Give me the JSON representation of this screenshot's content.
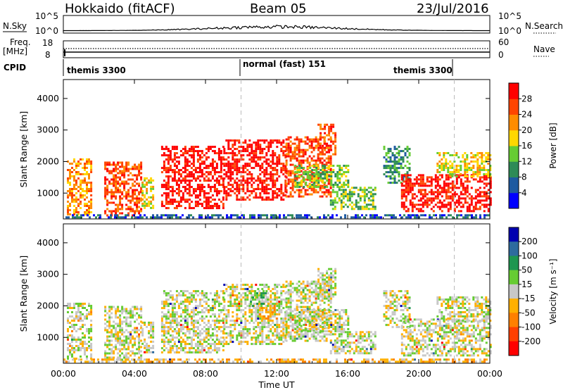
{
  "header": {
    "radar_title": "Hokkaido (fitACF)",
    "beam": "Beam 05",
    "date": "23/Jul/2016"
  },
  "labels": {
    "nsky": "N.Sky",
    "nsearch": "N.Search",
    "freq": "Freq.",
    "mhz": "[MHz]",
    "nave": "Nave",
    "cpid": "CPID",
    "noise_ticks_left": [
      "10^5",
      "10^0"
    ],
    "noise_ticks_right": [
      "10^5",
      "10^0"
    ],
    "freq_ticks": [
      "18",
      "8"
    ],
    "nave_ticks": [
      "60",
      "0"
    ]
  },
  "cpid_segments": [
    {
      "start": "00:00",
      "end": "10:00",
      "label": "themis 3300"
    },
    {
      "start": "10:00",
      "end": "22:00",
      "label": "normal (fast) 151"
    },
    {
      "start": "20:00",
      "end": "22:00",
      "label": "themis 3300"
    }
  ],
  "chart_data": [
    {
      "type": "heatmap",
      "panel": "power",
      "ylabel": "Slant Range [km]",
      "xlabel": "",
      "y_ticks": [
        "1000",
        "2000",
        "3000",
        "4000"
      ],
      "x_ticks": [
        "00:00",
        "04:00",
        "08:00",
        "12:00",
        "16:00",
        "20:00",
        "00:00"
      ],
      "ylim": [
        180,
        4600
      ],
      "colorbar": {
        "label": "Power [dB]",
        "ticks": [
          "4",
          "8",
          "12",
          "16",
          "20",
          "24",
          "28"
        ],
        "colors": [
          "#0000ff",
          "#1e5aa0",
          "#2e8b57",
          "#66cc33",
          "#ffd700",
          "#ff8c00",
          "#ff4500",
          "#ff0000"
        ]
      },
      "regions": [
        {
          "x0": 0.2,
          "x1": 1.6,
          "y0": 300,
          "y1": 2100,
          "level": 5
        },
        {
          "x0": 2.3,
          "x1": 4.4,
          "y0": 300,
          "y1": 2000,
          "level": 6
        },
        {
          "x0": 4.4,
          "x1": 5.0,
          "y0": 500,
          "y1": 1500,
          "level": 4
        },
        {
          "x0": 5.5,
          "x1": 9.0,
          "y0": 500,
          "y1": 2500,
          "level": 7
        },
        {
          "x0": 9.0,
          "x1": 12.5,
          "y0": 800,
          "y1": 2700,
          "level": 7
        },
        {
          "x0": 12.5,
          "x1": 15.0,
          "y0": 900,
          "y1": 2800,
          "level": 6
        },
        {
          "x0": 14.3,
          "x1": 15.3,
          "y0": 2200,
          "y1": 3200,
          "level": 6
        },
        {
          "x0": 13.0,
          "x1": 16.0,
          "y0": 1200,
          "y1": 1900,
          "level": 3
        },
        {
          "x0": 15.0,
          "x1": 17.5,
          "y0": 500,
          "y1": 1200,
          "level": 3
        },
        {
          "x0": 18.0,
          "x1": 19.5,
          "y0": 1300,
          "y1": 2500,
          "level": 2
        },
        {
          "x0": 19.0,
          "x1": 24.0,
          "y0": 400,
          "y1": 1600,
          "level": 7
        },
        {
          "x0": 21.0,
          "x1": 24.0,
          "y0": 1500,
          "y1": 2300,
          "level": 4
        },
        {
          "x0": 0.0,
          "x1": 24.0,
          "y0": 200,
          "y1": 330,
          "level": 1
        }
      ]
    },
    {
      "type": "heatmap",
      "panel": "velocity",
      "ylabel": "Slant Range [km]",
      "xlabel": "Time UT",
      "y_ticks": [
        "1000",
        "2000",
        "3000",
        "4000"
      ],
      "x_ticks": [
        "00:00",
        "04:00",
        "08:00",
        "12:00",
        "16:00",
        "20:00",
        "00:00"
      ],
      "ylim": [
        180,
        4600
      ],
      "colorbar": {
        "label": "Velocity [m s⁻¹]",
        "ticks": [
          "200",
          "100",
          "50",
          "15",
          "-15",
          "-50",
          "-100",
          "-200"
        ],
        "colors": [
          "#0000b0",
          "#2e6b9e",
          "#1e9650",
          "#66cc33",
          "#c8c8c8",
          "#ffb000",
          "#ff8000",
          "#ff4000",
          "#ff0000"
        ]
      },
      "regions": [
        {
          "x0": 0.2,
          "x1": 1.6,
          "y0": 300,
          "y1": 2100,
          "level": 4
        },
        {
          "x0": 2.3,
          "x1": 4.4,
          "y0": 300,
          "y1": 2000,
          "level": 4
        },
        {
          "x0": 4.4,
          "x1": 5.0,
          "y0": 500,
          "y1": 1500,
          "level": 4
        },
        {
          "x0": 5.5,
          "x1": 9.0,
          "y0": 500,
          "y1": 2500,
          "level": 4
        },
        {
          "x0": 9.0,
          "x1": 12.5,
          "y0": 800,
          "y1": 2700,
          "level": 4
        },
        {
          "x0": 12.5,
          "x1": 15.0,
          "y0": 900,
          "y1": 2800,
          "level": 4
        },
        {
          "x0": 14.3,
          "x1": 15.3,
          "y0": 2200,
          "y1": 3200,
          "level": 4
        },
        {
          "x0": 11.0,
          "x1": 12.0,
          "y0": 1500,
          "y1": 2100,
          "level": 5
        },
        {
          "x0": 10.5,
          "x1": 11.5,
          "y0": 2000,
          "y1": 2500,
          "level": 3
        },
        {
          "x0": 13.0,
          "x1": 16.0,
          "y0": 1200,
          "y1": 1900,
          "level": 4
        },
        {
          "x0": 15.0,
          "x1": 17.5,
          "y0": 500,
          "y1": 1200,
          "level": 4
        },
        {
          "x0": 18.0,
          "x1": 19.5,
          "y0": 1300,
          "y1": 2500,
          "level": 4
        },
        {
          "x0": 19.0,
          "x1": 24.0,
          "y0": 400,
          "y1": 1600,
          "level": 4
        },
        {
          "x0": 21.0,
          "x1": 24.0,
          "y0": 1500,
          "y1": 2300,
          "level": 4
        },
        {
          "x0": 0.0,
          "x1": 24.0,
          "y0": 200,
          "y1": 330,
          "level": 5
        }
      ]
    }
  ]
}
